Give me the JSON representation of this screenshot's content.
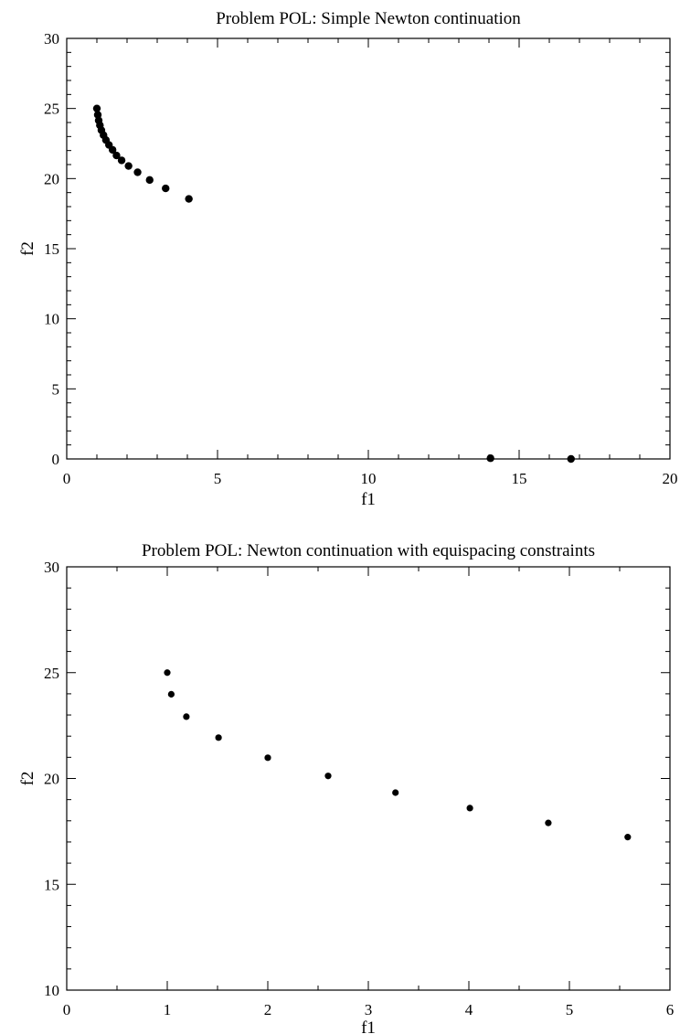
{
  "chart_data": [
    {
      "type": "scatter",
      "title": "Problem POL: Simple Newton continuation",
      "xlabel": "f1",
      "ylabel": "f2",
      "xlim": [
        0,
        20
      ],
      "ylim": [
        0,
        30
      ],
      "xticks": [
        "0",
        "5",
        "10",
        "15",
        "20"
      ],
      "yticks": [
        "0",
        "5",
        "10",
        "15",
        "20",
        "25",
        "30"
      ],
      "grid": false,
      "marker_color": "#000000",
      "points": [
        [
          1.0,
          25.0
        ],
        [
          1.03,
          24.55
        ],
        [
          1.06,
          24.15
        ],
        [
          1.1,
          23.8
        ],
        [
          1.15,
          23.45
        ],
        [
          1.22,
          23.1
        ],
        [
          1.3,
          22.75
        ],
        [
          1.4,
          22.4
        ],
        [
          1.52,
          22.05
        ],
        [
          1.65,
          21.65
        ],
        [
          1.82,
          21.3
        ],
        [
          2.05,
          20.9
        ],
        [
          2.35,
          20.45
        ],
        [
          2.75,
          19.9
        ],
        [
          3.28,
          19.3
        ],
        [
          4.05,
          18.55
        ],
        [
          14.05,
          0.05
        ],
        [
          16.72,
          0.0
        ]
      ]
    },
    {
      "type": "scatter",
      "title": "Problem POL: Newton continuation with equispacing constraints",
      "xlabel": "f1",
      "ylabel": "f2",
      "xlim": [
        0,
        6
      ],
      "ylim": [
        10,
        30
      ],
      "xticks": [
        "0",
        "1",
        "2",
        "3",
        "4",
        "5",
        "6"
      ],
      "yticks": [
        "10",
        "15",
        "20",
        "25",
        "30"
      ],
      "grid": false,
      "marker_color": "#000000",
      "points": [
        [
          1.0,
          25.0
        ],
        [
          1.04,
          23.98
        ],
        [
          1.19,
          22.92
        ],
        [
          1.51,
          21.93
        ],
        [
          2.0,
          20.98
        ],
        [
          2.6,
          20.12
        ],
        [
          3.27,
          19.33
        ],
        [
          4.01,
          18.6
        ],
        [
          4.79,
          17.9
        ],
        [
          5.58,
          17.23
        ]
      ]
    }
  ]
}
